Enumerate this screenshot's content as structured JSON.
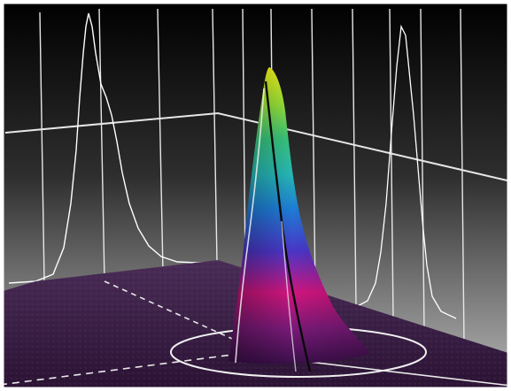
{
  "image": {
    "subject": "3d-beam-profile",
    "colormap": [
      "#3a0f4a",
      "#7a1a78",
      "#d0157e",
      "#4a35c6",
      "#1e7bd6",
      "#26b6b4",
      "#38c37b",
      "#9adf35",
      "#f4f01a"
    ],
    "background_top": "#000000",
    "background_bottom": "#b4b4b4",
    "floor_color": "#3d2248",
    "grid_color": "#ffffff"
  }
}
